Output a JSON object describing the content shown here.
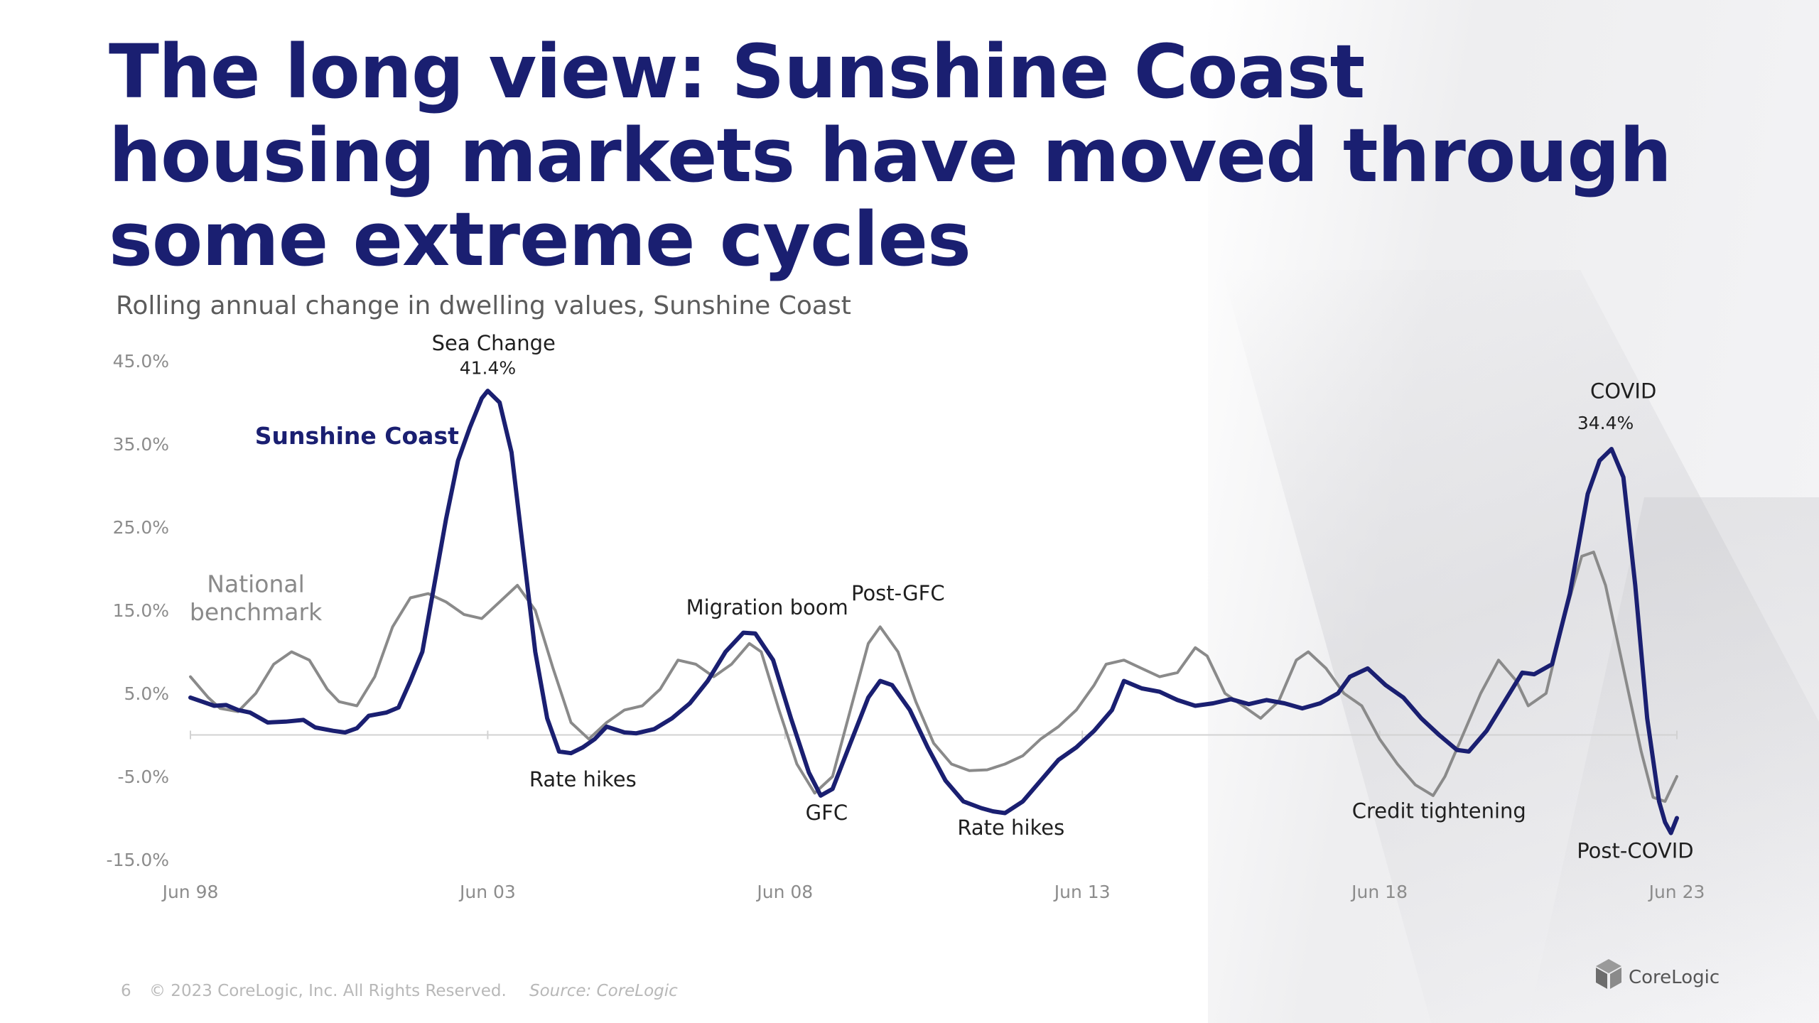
{
  "slide": {
    "title": "The long view:  Sunshine Coast housing markets have moved through some extreme cycles",
    "subtitle": "Rolling annual change in dwelling values, Sunshine Coast",
    "page_number": "6",
    "copyright": "© 2023 CoreLogic, Inc. All Rights Reserved.",
    "source": "Source: CoreLogic",
    "logo_text": "CoreLogic",
    "colors": {
      "title": "#1a1f71",
      "sunshine_coast": "#1a1f71",
      "national": "#8a8a8a"
    }
  },
  "chart_data": {
    "type": "line",
    "title": "Rolling annual change in dwelling values, Sunshine Coast",
    "y_ticks": [
      "45.0%",
      "35.0%",
      "25.0%",
      "15.0%",
      "5.0%",
      "-5.0%",
      "-15.0%"
    ],
    "y_tick_values": [
      45,
      35,
      25,
      15,
      5,
      -5,
      -15
    ],
    "x_ticks": [
      "Jun 98",
      "Jun 03",
      "Jun 08",
      "Jun 13",
      "Jun 18",
      "Jun 23"
    ],
    "x_tick_values": [
      1998.5,
      2003.5,
      2008.5,
      2013.5,
      2018.5,
      2023.5
    ],
    "ylim": [
      -15,
      45
    ],
    "xlim": [
      1998.5,
      2023.5
    ],
    "grid": false,
    "series": [
      {
        "name": "Sunshine Coast",
        "color": "#1a1f71",
        "points": [
          [
            1998.5,
            4.5
          ],
          [
            1998.7,
            4
          ],
          [
            1998.9,
            3.5
          ],
          [
            1999.1,
            3.6
          ],
          [
            1999.3,
            3.0
          ],
          [
            1999.5,
            2.7
          ],
          [
            1999.8,
            1.5
          ],
          [
            2000.1,
            1.6
          ],
          [
            2000.4,
            1.8
          ],
          [
            2000.6,
            0.9
          ],
          [
            2000.9,
            0.5
          ],
          [
            2001.1,
            0.3
          ],
          [
            2001.3,
            0.8
          ],
          [
            2001.5,
            2.3
          ],
          [
            2001.8,
            2.7
          ],
          [
            2002.0,
            3.3
          ],
          [
            2002.2,
            6.5
          ],
          [
            2002.4,
            10
          ],
          [
            2002.6,
            18
          ],
          [
            2002.8,
            26
          ],
          [
            2003.0,
            33
          ],
          [
            2003.2,
            37
          ],
          [
            2003.4,
            40.5
          ],
          [
            2003.5,
            41.4
          ],
          [
            2003.7,
            40
          ],
          [
            2003.9,
            34
          ],
          [
            2004.1,
            22
          ],
          [
            2004.3,
            10
          ],
          [
            2004.5,
            2
          ],
          [
            2004.7,
            -2
          ],
          [
            2004.9,
            -2.2
          ],
          [
            2005.1,
            -1.5
          ],
          [
            2005.3,
            -0.5
          ],
          [
            2005.5,
            1.0
          ],
          [
            2005.8,
            0.3
          ],
          [
            2006.0,
            0.2
          ],
          [
            2006.3,
            0.7
          ],
          [
            2006.6,
            2.0
          ],
          [
            2006.9,
            3.8
          ],
          [
            2007.2,
            6.5
          ],
          [
            2007.5,
            10
          ],
          [
            2007.8,
            12.3
          ],
          [
            2008.0,
            12.2
          ],
          [
            2008.3,
            9
          ],
          [
            2008.6,
            2
          ],
          [
            2008.9,
            -4.5
          ],
          [
            2009.1,
            -7.3
          ],
          [
            2009.3,
            -6.5
          ],
          [
            2009.6,
            -1.0
          ],
          [
            2009.9,
            4.5
          ],
          [
            2010.1,
            6.5
          ],
          [
            2010.3,
            6.0
          ],
          [
            2010.6,
            3.0
          ],
          [
            2010.9,
            -1.5
          ],
          [
            2011.2,
            -5.5
          ],
          [
            2011.5,
            -8.0
          ],
          [
            2011.8,
            -8.8
          ],
          [
            2012.0,
            -9.2
          ],
          [
            2012.2,
            -9.4
          ],
          [
            2012.5,
            -8.0
          ],
          [
            2012.8,
            -5.5
          ],
          [
            2013.1,
            -3.0
          ],
          [
            2013.4,
            -1.5
          ],
          [
            2013.7,
            0.5
          ],
          [
            2014.0,
            3.0
          ],
          [
            2014.2,
            6.5
          ],
          [
            2014.5,
            5.6
          ],
          [
            2014.8,
            5.2
          ],
          [
            2015.1,
            4.2
          ],
          [
            2015.4,
            3.5
          ],
          [
            2015.7,
            3.8
          ],
          [
            2016.0,
            4.3
          ],
          [
            2016.3,
            3.7
          ],
          [
            2016.6,
            4.2
          ],
          [
            2016.9,
            3.8
          ],
          [
            2017.2,
            3.2
          ],
          [
            2017.5,
            3.8
          ],
          [
            2017.8,
            5.0
          ],
          [
            2018.0,
            7.0
          ],
          [
            2018.3,
            8.0
          ],
          [
            2018.6,
            6.0
          ],
          [
            2018.9,
            4.5
          ],
          [
            2019.2,
            2.0
          ],
          [
            2019.5,
            0
          ],
          [
            2019.8,
            -1.8
          ],
          [
            2020.0,
            -2.0
          ],
          [
            2020.3,
            0.5
          ],
          [
            2020.6,
            4.0
          ],
          [
            2020.9,
            7.5
          ],
          [
            2021.1,
            7.3
          ],
          [
            2021.4,
            8.5
          ],
          [
            2021.7,
            17
          ],
          [
            2022.0,
            29
          ],
          [
            2022.2,
            33
          ],
          [
            2022.4,
            34.4
          ],
          [
            2022.6,
            31
          ],
          [
            2022.8,
            18
          ],
          [
            2023.0,
            2
          ],
          [
            2023.2,
            -8
          ],
          [
            2023.3,
            -10.5
          ],
          [
            2023.4,
            -11.8
          ],
          [
            2023.5,
            -10
          ]
        ]
      },
      {
        "name": "National benchmark",
        "color": "#8a8a8a",
        "points": [
          [
            1998.5,
            7.0
          ],
          [
            1998.8,
            4.5
          ],
          [
            1999.0,
            3.2
          ],
          [
            1999.3,
            2.8
          ],
          [
            1999.6,
            5.0
          ],
          [
            1999.9,
            8.5
          ],
          [
            2000.2,
            10.0
          ],
          [
            2000.5,
            9.0
          ],
          [
            2000.8,
            5.5
          ],
          [
            2001.0,
            4.0
          ],
          [
            2001.3,
            3.5
          ],
          [
            2001.6,
            7.0
          ],
          [
            2001.9,
            13.0
          ],
          [
            2002.2,
            16.5
          ],
          [
            2002.5,
            17.0
          ],
          [
            2002.8,
            16.0
          ],
          [
            2003.1,
            14.5
          ],
          [
            2003.4,
            14.0
          ],
          [
            2003.7,
            16.0
          ],
          [
            2004.0,
            18.0
          ],
          [
            2004.3,
            15.0
          ],
          [
            2004.6,
            8.0
          ],
          [
            2004.9,
            1.5
          ],
          [
            2005.2,
            -0.5
          ],
          [
            2005.5,
            1.5
          ],
          [
            2005.8,
            3.0
          ],
          [
            2006.1,
            3.5
          ],
          [
            2006.4,
            5.5
          ],
          [
            2006.7,
            9.0
          ],
          [
            2007.0,
            8.5
          ],
          [
            2007.3,
            7.0
          ],
          [
            2007.6,
            8.5
          ],
          [
            2007.9,
            11.0
          ],
          [
            2008.1,
            10.0
          ],
          [
            2008.4,
            3.0
          ],
          [
            2008.7,
            -3.5
          ],
          [
            2009.0,
            -7.0
          ],
          [
            2009.3,
            -5.0
          ],
          [
            2009.6,
            3.0
          ],
          [
            2009.9,
            11.0
          ],
          [
            2010.1,
            13.0
          ],
          [
            2010.4,
            10.0
          ],
          [
            2010.7,
            4.0
          ],
          [
            2011.0,
            -1.0
          ],
          [
            2011.3,
            -3.5
          ],
          [
            2011.6,
            -4.3
          ],
          [
            2011.9,
            -4.2
          ],
          [
            2012.2,
            -3.5
          ],
          [
            2012.5,
            -2.5
          ],
          [
            2012.8,
            -0.5
          ],
          [
            2013.1,
            1.0
          ],
          [
            2013.4,
            3.0
          ],
          [
            2013.7,
            6.0
          ],
          [
            2013.9,
            8.5
          ],
          [
            2014.2,
            9.0
          ],
          [
            2014.5,
            8.0
          ],
          [
            2014.8,
            7.0
          ],
          [
            2015.1,
            7.5
          ],
          [
            2015.4,
            10.5
          ],
          [
            2015.6,
            9.5
          ],
          [
            2015.9,
            5.0
          ],
          [
            2016.2,
            3.5
          ],
          [
            2016.5,
            2.0
          ],
          [
            2016.8,
            4.0
          ],
          [
            2017.1,
            9.0
          ],
          [
            2017.3,
            10.0
          ],
          [
            2017.6,
            8.0
          ],
          [
            2017.9,
            5.0
          ],
          [
            2018.2,
            3.5
          ],
          [
            2018.5,
            -0.5
          ],
          [
            2018.8,
            -3.5
          ],
          [
            2019.1,
            -6.0
          ],
          [
            2019.4,
            -7.3
          ],
          [
            2019.6,
            -5.0
          ],
          [
            2019.9,
            0
          ],
          [
            2020.2,
            5.0
          ],
          [
            2020.5,
            9.0
          ],
          [
            2020.8,
            6.5
          ],
          [
            2021.0,
            3.5
          ],
          [
            2021.3,
            5.0
          ],
          [
            2021.6,
            14.0
          ],
          [
            2021.9,
            21.5
          ],
          [
            2022.1,
            22.0
          ],
          [
            2022.3,
            18.0
          ],
          [
            2022.6,
            8.0
          ],
          [
            2022.9,
            -2.0
          ],
          [
            2023.1,
            -7.5
          ],
          [
            2023.3,
            -8.0
          ],
          [
            2023.5,
            -5.0
          ]
        ]
      }
    ],
    "series_labels": [
      {
        "text": "Sunshine Coast",
        "at": [
          2001.3,
          35.0
        ],
        "color": "#1a1f71"
      },
      {
        "text": "National",
        "at": [
          1999.6,
          17.2
        ],
        "color": "#8a8a8a"
      },
      {
        "text": "benchmark",
        "at": [
          1999.6,
          13.8
        ],
        "color": "#8a8a8a"
      }
    ],
    "annotations": [
      {
        "text": "Sea Change",
        "at": [
          2003.6,
          46.3
        ]
      },
      {
        "text": "41.4%",
        "at": [
          2003.5,
          43.4
        ]
      },
      {
        "text": "Rate hikes",
        "at": [
          2005.1,
          -6.2
        ]
      },
      {
        "text": "Migration boom",
        "at": [
          2008.2,
          14.5
        ]
      },
      {
        "text": "Post-GFC",
        "at": [
          2010.4,
          16.2
        ]
      },
      {
        "text": "GFC",
        "at": [
          2009.2,
          -10.2
        ]
      },
      {
        "text": "Rate hikes",
        "at": [
          2012.3,
          -12.0
        ]
      },
      {
        "text": "Credit tightening",
        "at": [
          2019.5,
          -10.0
        ]
      },
      {
        "text": "COVID",
        "at": [
          2022.6,
          40.5
        ]
      },
      {
        "text": "34.4%",
        "at": [
          2022.3,
          36.8
        ]
      },
      {
        "text": "Post-COVID",
        "at": [
          2022.8,
          -14.8
        ]
      }
    ]
  }
}
